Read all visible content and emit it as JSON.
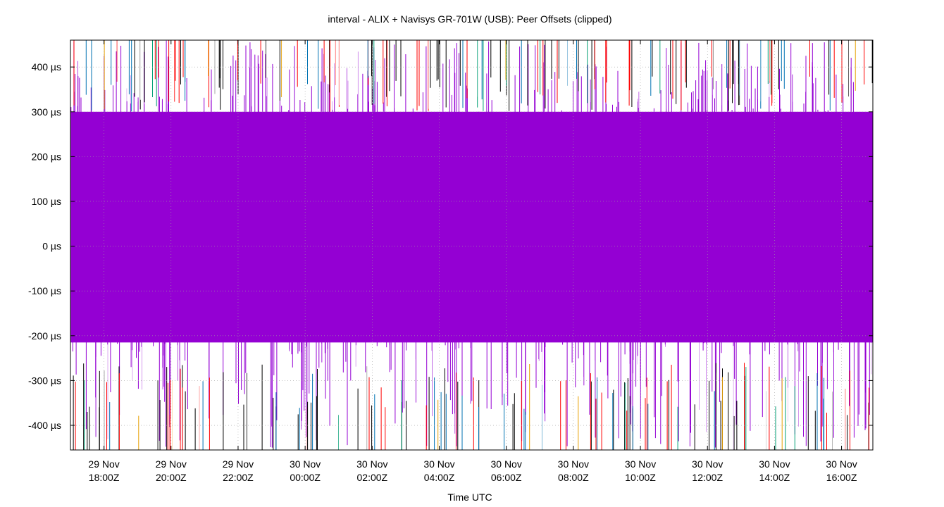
{
  "chart_data": {
    "type": "line",
    "title": "interval - ALIX + Navisys GR-701W (USB): Peer Offsets (clipped)",
    "xlabel": "Time UTC",
    "ylabel": "",
    "ylim": [
      -455,
      460
    ],
    "y_ticks": [
      {
        "value": 400,
        "label": "400 µs"
      },
      {
        "value": 300,
        "label": "300 µs"
      },
      {
        "value": 200,
        "label": "200 µs"
      },
      {
        "value": 100,
        "label": "100 µs"
      },
      {
        "value": 0,
        "label": "0 µs"
      },
      {
        "value": -100,
        "label": "-100 µs"
      },
      {
        "value": -200,
        "label": "-200 µs"
      },
      {
        "value": -300,
        "label": "-300 µs"
      },
      {
        "value": -400,
        "label": "-400 µs"
      }
    ],
    "xlim": [
      "2024-11-29T17:00:00Z",
      "2024-11-30T16:56:00Z"
    ],
    "x_ticks": [
      {
        "value": "2024-11-29T18:00:00Z",
        "line1": "29 Nov",
        "line2": "18:00Z"
      },
      {
        "value": "2024-11-29T20:00:00Z",
        "line1": "29 Nov",
        "line2": "20:00Z"
      },
      {
        "value": "2024-11-29T22:00:00Z",
        "line1": "29 Nov",
        "line2": "22:00Z"
      },
      {
        "value": "2024-11-30T00:00:00Z",
        "line1": "30 Nov",
        "line2": "00:00Z"
      },
      {
        "value": "2024-11-30T02:00:00Z",
        "line1": "30 Nov",
        "line2": "02:00Z"
      },
      {
        "value": "2024-11-30T04:00:00Z",
        "line1": "30 Nov",
        "line2": "04:00Z"
      },
      {
        "value": "2024-11-30T06:00:00Z",
        "line1": "30 Nov",
        "line2": "06:00Z"
      },
      {
        "value": "2024-11-30T08:00:00Z",
        "line1": "30 Nov",
        "line2": "08:00Z"
      },
      {
        "value": "2024-11-30T10:00:00Z",
        "line1": "30 Nov",
        "line2": "10:00Z"
      },
      {
        "value": "2024-11-30T12:00:00Z",
        "line1": "30 Nov",
        "line2": "12:00Z"
      },
      {
        "value": "2024-11-30T14:00:00Z",
        "line1": "30 Nov",
        "line2": "14:00Z"
      },
      {
        "value": "2024-11-30T16:00:00Z",
        "line1": "30 Nov",
        "line2": "16:00Z"
      }
    ],
    "grid": true,
    "legend": "none",
    "series": [
      {
        "color": "#9400d3",
        "fill_range": [
          -215,
          300
        ],
        "spike_min": -455,
        "spike_max": 460,
        "count": 380
      },
      {
        "color": "#000000",
        "spike_min": -455,
        "spike_max": 460,
        "count": 110
      },
      {
        "color": "#ff0000",
        "spike_min": -455,
        "spike_max": 460,
        "count": 80
      },
      {
        "color": "#0072b2",
        "spike_min": -455,
        "spike_max": 460,
        "count": 45
      },
      {
        "color": "#009e73",
        "spike_min": -455,
        "spike_max": 460,
        "count": 20
      },
      {
        "color": "#e69f00",
        "spike_min": -455,
        "spike_max": 460,
        "count": 12
      }
    ]
  }
}
